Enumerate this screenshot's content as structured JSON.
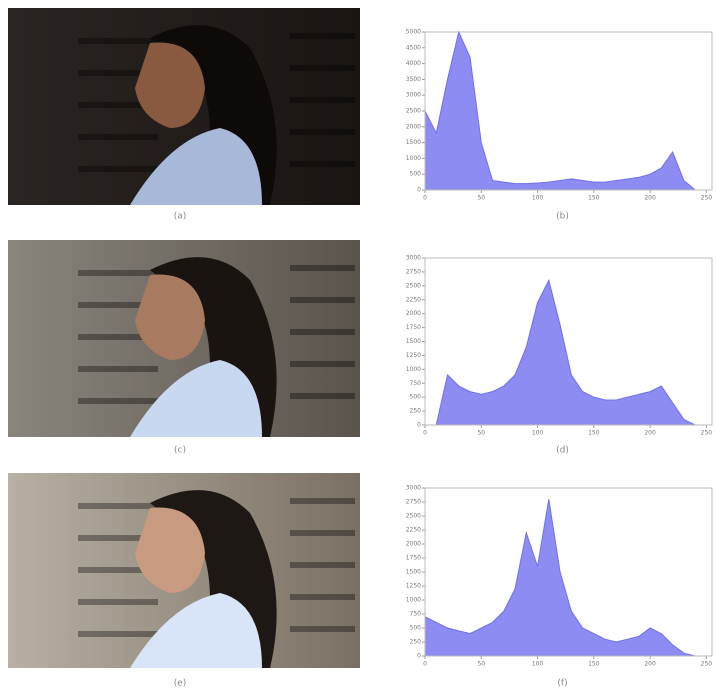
{
  "photos": [
    {
      "caption": "(a)"
    },
    {
      "caption": "(c)"
    },
    {
      "caption": "(e)"
    }
  ],
  "chart_data": [
    {
      "type": "area",
      "caption": "(b)",
      "color": "#6f6ff0",
      "x": [
        0,
        10,
        20,
        30,
        40,
        50,
        60,
        70,
        80,
        90,
        100,
        110,
        120,
        130,
        140,
        150,
        160,
        170,
        180,
        190,
        200,
        210,
        220,
        230,
        240,
        250
      ],
      "values": [
        2500,
        1800,
        3500,
        5000,
        4200,
        1500,
        300,
        250,
        200,
        200,
        220,
        250,
        300,
        350,
        300,
        250,
        250,
        300,
        350,
        400,
        500,
        700,
        1200,
        300,
        0,
        0
      ],
      "xlim": [
        0,
        255
      ],
      "ylim": [
        0,
        5000
      ],
      "xticks": [
        0,
        50,
        100,
        150,
        200,
        250
      ],
      "yticks": [
        0,
        500,
        1000,
        1500,
        2000,
        2500,
        3000,
        3500,
        4000,
        4500,
        5000
      ]
    },
    {
      "type": "area",
      "caption": "(d)",
      "color": "#6f6ff0",
      "x": [
        0,
        10,
        20,
        30,
        40,
        50,
        60,
        70,
        80,
        90,
        100,
        110,
        120,
        130,
        140,
        150,
        160,
        170,
        180,
        190,
        200,
        210,
        220,
        230,
        240,
        250
      ],
      "values": [
        0,
        0,
        900,
        700,
        600,
        550,
        600,
        700,
        900,
        1400,
        2200,
        2600,
        1800,
        900,
        600,
        500,
        450,
        450,
        500,
        550,
        600,
        700,
        400,
        100,
        0,
        0
      ],
      "xlim": [
        0,
        255
      ],
      "ylim": [
        0,
        3000
      ],
      "xticks": [
        0,
        50,
        100,
        150,
        200,
        250
      ],
      "yticks": [
        0,
        250,
        500,
        750,
        1000,
        1250,
        1500,
        1750,
        2000,
        2250,
        2500,
        2750,
        3000
      ]
    },
    {
      "type": "area",
      "caption": "(f)",
      "color": "#6f6ff0",
      "x": [
        0,
        10,
        20,
        30,
        40,
        50,
        60,
        70,
        80,
        90,
        100,
        110,
        120,
        130,
        140,
        150,
        160,
        170,
        180,
        190,
        200,
        210,
        220,
        230,
        240,
        250
      ],
      "values": [
        700,
        600,
        500,
        450,
        400,
        500,
        600,
        800,
        1200,
        2200,
        1600,
        2800,
        1500,
        800,
        500,
        400,
        300,
        250,
        300,
        350,
        500,
        400,
        200,
        50,
        0,
        0
      ],
      "xlim": [
        0,
        255
      ],
      "ylim": [
        0,
        3000
      ],
      "xticks": [
        0,
        50,
        100,
        150,
        200,
        250
      ],
      "yticks": [
        0,
        250,
        500,
        750,
        1000,
        1250,
        1500,
        1750,
        2000,
        2250,
        2500,
        2750,
        3000
      ]
    }
  ]
}
